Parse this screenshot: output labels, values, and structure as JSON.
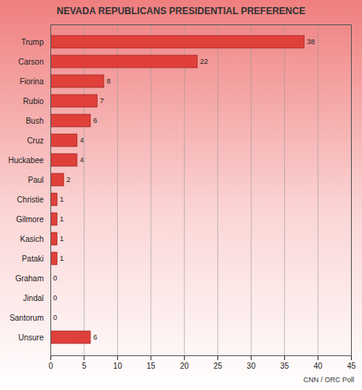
{
  "chart_data": {
    "type": "bar",
    "orientation": "horizontal",
    "title": "NEVADA REPUBLICANS PRESIDENTIAL PREFERENCE",
    "caption": "CNN / ORC Poll",
    "categories": [
      "Trump",
      "Carson",
      "Fiorina",
      "Rubio",
      "Bush",
      "Cruz",
      "Huckabee",
      "Paul",
      "Christie",
      "Gilmore",
      "Kasich",
      "Pataki",
      "Graham",
      "Jindal",
      "Santorum",
      "Unsure"
    ],
    "values": [
      38,
      22,
      8,
      7,
      6,
      4,
      4,
      2,
      1,
      1,
      1,
      1,
      0,
      0,
      0,
      6
    ],
    "color": "#e0403a",
    "xlim": [
      0,
      45
    ],
    "xticks": [
      0,
      5,
      10,
      15,
      20,
      25,
      30,
      35,
      40,
      45
    ],
    "grid": true,
    "data_labels": true
  }
}
